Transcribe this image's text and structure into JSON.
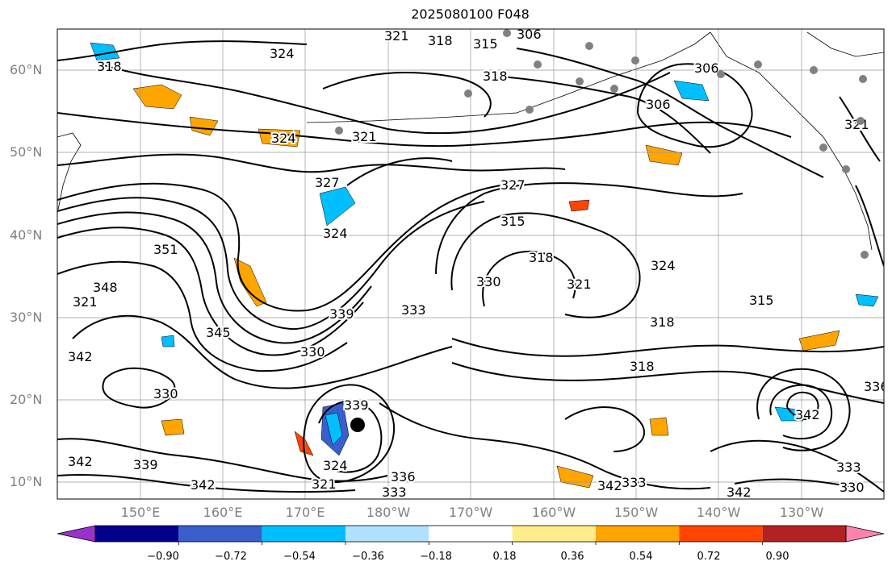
{
  "title": "2025080100 F048",
  "lat_labels": [
    "60°N",
    "50°N",
    "40°N",
    "30°N",
    "20°N",
    "10°N"
  ],
  "lon_labels": [
    "150°E",
    "160°E",
    "170°E",
    "180°W",
    "170°W",
    "160°W",
    "150°W",
    "140°W",
    "130°W"
  ],
  "contour_labels": [
    "306",
    "315",
    "318",
    "321",
    "324",
    "327",
    "330",
    "333",
    "336",
    "339",
    "342",
    "345",
    "348",
    "351"
  ],
  "colorbar": {
    "ticks": [
      "−0.90",
      "−0.72",
      "−0.54",
      "−0.36",
      "−0.18",
      "0.18",
      "0.36",
      "0.54",
      "0.72",
      "0.90"
    ],
    "colors": [
      "#9932cc",
      "#00008b",
      "#3a5fcd",
      "#00bfff",
      "#b0e2ff",
      "#ffffff",
      "#ffec8b",
      "#ffa500",
      "#ff4500",
      "#b22222",
      "#ff82ab"
    ]
  },
  "colors": {
    "coastline": "#000000",
    "grid": "#999999",
    "station": "#808080"
  }
}
